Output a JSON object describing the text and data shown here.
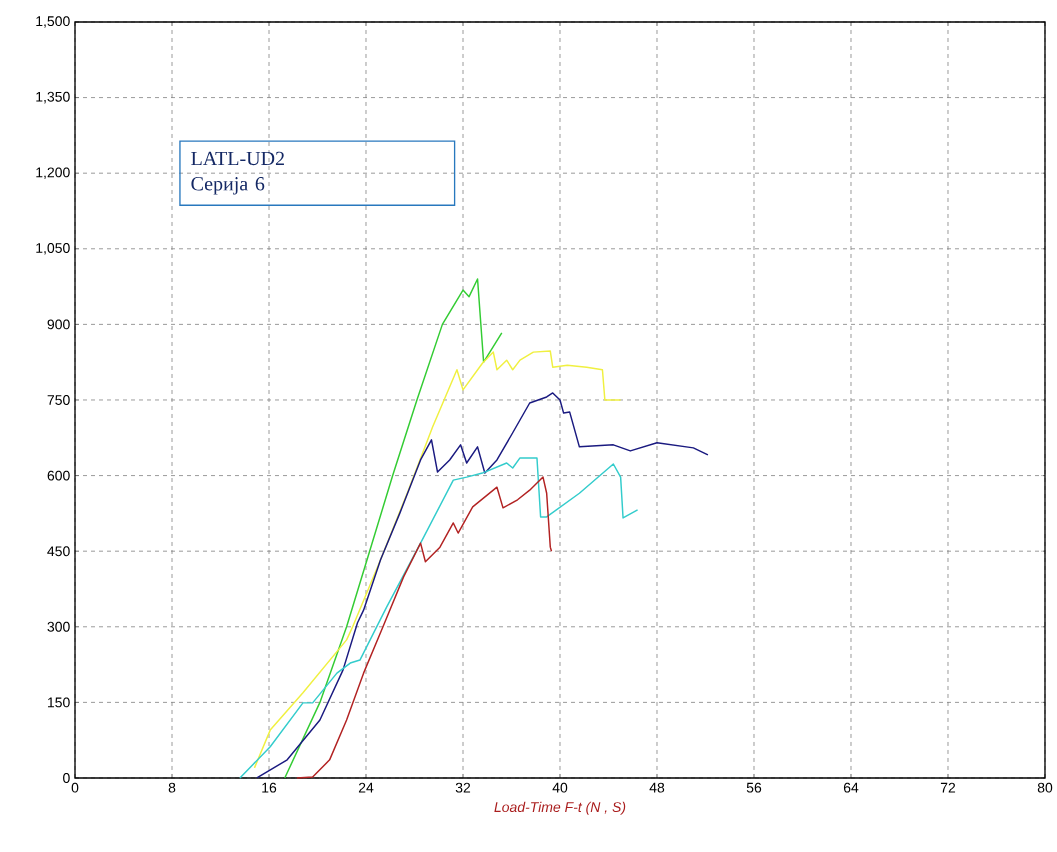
{
  "chart_data": {
    "type": "line",
    "xlabel": "Load-Time F-t    (N , S)",
    "annotations": [
      "LATL-UD2",
      "Серија 6"
    ],
    "xlim": [
      0,
      80
    ],
    "ylim": [
      0,
      1500
    ],
    "xticks": [
      0,
      8,
      16,
      24,
      32,
      40,
      48,
      56,
      64,
      72,
      80
    ],
    "yticks": [
      0,
      150,
      300,
      450,
      600,
      750,
      900,
      {
        "value": 1050,
        "label": "1,050"
      },
      {
        "value": 1200,
        "label": "1,200"
      },
      {
        "value": 1350,
        "label": "1,350"
      },
      {
        "value": 1500,
        "label": "1,500"
      }
    ],
    "grid": true,
    "legend": false,
    "marker": "none",
    "line_style": "solid",
    "series": [
      {
        "color": "#33cc33",
        "x": [
          17.3,
          20.2,
          22.4,
          24.3,
          26.2,
          28.2,
          30.3,
          32.0,
          32.5,
          33.2,
          33.7,
          35.2
        ],
        "values": [
          0,
          150,
          300,
          450,
          600,
          750,
          900,
          968,
          955,
          990,
          825,
          883
        ]
      },
      {
        "color": "#f0f040",
        "x": [
          14.8,
          16.1,
          18.8,
          22.4,
          22.9,
          25.2,
          27.4,
          29.5,
          31.5,
          32.0,
          33.6,
          34.5,
          34.8,
          35.6,
          36.1,
          36.7,
          37.8,
          39.2,
          39.4,
          40.6,
          42.2,
          43.5,
          43.7,
          45.0
        ],
        "values": [
          20,
          95,
          169,
          274,
          300,
          433,
          565,
          697,
          810,
          770,
          823,
          845,
          810,
          829,
          810,
          829,
          845,
          847,
          815,
          819,
          815,
          810,
          750,
          750
        ]
      },
      {
        "color": "#1a1a80",
        "x": [
          15.0,
          17.5,
          20.2,
          22.1,
          23.3,
          23.8,
          25.2,
          26.8,
          28.5,
          29.4,
          29.9,
          30.9,
          31.8,
          32.3,
          33.2,
          33.8,
          34.8,
          36.1,
          37.5,
          38.9,
          39.4,
          40.0,
          40.3,
          40.8,
          41.6,
          44.4,
          45.8,
          48.0,
          51.0,
          52.2
        ],
        "values": [
          0,
          36,
          115,
          214,
          308,
          333,
          433,
          526,
          631,
          671,
          607,
          631,
          661,
          625,
          657,
          605,
          631,
          685,
          744,
          756,
          764,
          750,
          724,
          726,
          657,
          661,
          649,
          665,
          655,
          641
        ]
      },
      {
        "color": "#33cccc",
        "x": [
          13.6,
          16.1,
          18.8,
          19.6,
          21.6,
          22.7,
          23.5,
          25.7,
          28.5,
          31.2,
          32.3,
          33.6,
          35.6,
          36.1,
          36.7,
          38.1,
          38.4,
          38.9,
          41.6,
          44.4,
          45.0,
          45.2,
          46.4
        ],
        "values": [
          0,
          62,
          149,
          149,
          208,
          228,
          234,
          339,
          466,
          591,
          597,
          605,
          625,
          615,
          635,
          635,
          518,
          518,
          565,
          623,
          597,
          516,
          532
        ]
      },
      {
        "color": "#b22222",
        "x": [
          18.3,
          19.6,
          21.0,
          22.4,
          23.8,
          25.4,
          27.1,
          28.5,
          28.9,
          30.1,
          31.2,
          31.6,
          32.8,
          34.8,
          35.3,
          36.5,
          37.5,
          38.6,
          38.9,
          39.2,
          39.3
        ],
        "values": [
          0,
          2,
          36,
          115,
          208,
          300,
          399,
          466,
          429,
          458,
          506,
          486,
          538,
          577,
          536,
          552,
          571,
          597,
          565,
          458,
          450
        ]
      }
    ]
  }
}
